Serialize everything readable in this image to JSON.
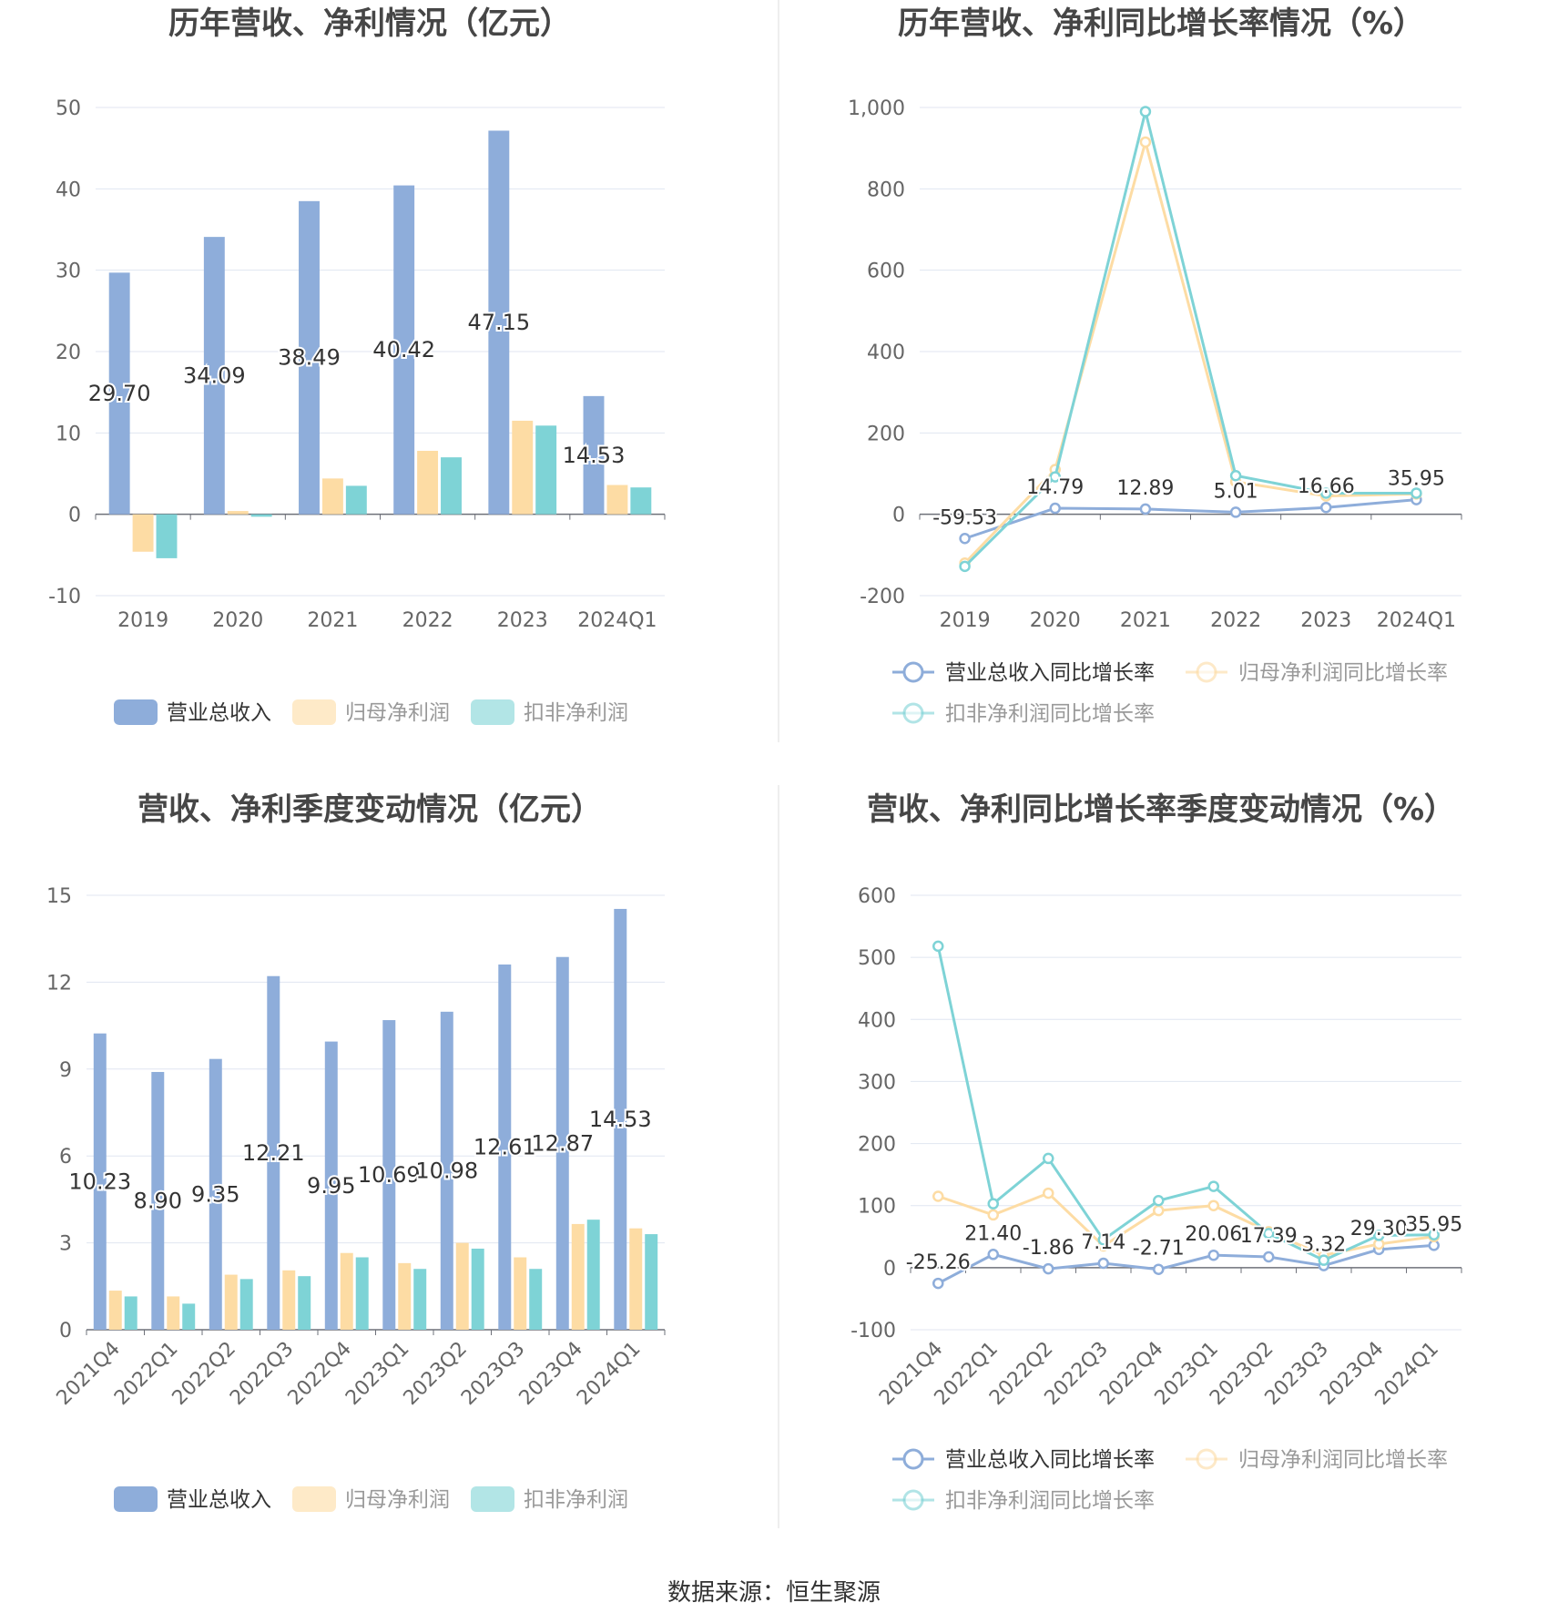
{
  "source_text": "数据来源：恒生聚源",
  "colors": {
    "revenue": "#8eadda",
    "net_profit": "#fddca4",
    "deducted_profit": "#7ed3d6",
    "axis_text": "#666666",
    "grid": "#e0e6f1",
    "title": "#464646"
  },
  "legend_bar": [
    "营业总收入",
    "归母净利润",
    "扣非净利润"
  ],
  "legend_line": [
    "营业总收入同比增长率",
    "归母净利润同比增长率",
    "扣非净利润同比增长率"
  ],
  "chart_data": [
    {
      "id": "annual_amount",
      "type": "bar",
      "title": "历年营收、净利情况（亿元）",
      "categories": [
        "2019",
        "2020",
        "2021",
        "2022",
        "2023",
        "2024Q1"
      ],
      "ylim": [
        -10,
        50
      ],
      "yticks": [
        -10,
        0,
        10,
        20,
        30,
        40,
        50
      ],
      "series": [
        {
          "name": "营业总收入",
          "values": [
            29.7,
            34.09,
            38.49,
            40.42,
            47.15,
            14.53
          ]
        },
        {
          "name": "归母净利润",
          "values": [
            -4.6,
            0.4,
            4.4,
            7.8,
            11.5,
            3.6
          ]
        },
        {
          "name": "扣非净利润",
          "values": [
            -5.4,
            -0.3,
            3.5,
            7.0,
            10.9,
            3.3
          ]
        }
      ],
      "data_labels": [
        "29.70",
        "34.09",
        "38.49",
        "40.42",
        "47.15",
        "14.53"
      ]
    },
    {
      "id": "annual_growth",
      "type": "line",
      "title": "历年营收、净利同比增长率情况（%）",
      "categories": [
        "2019",
        "2020",
        "2021",
        "2022",
        "2023",
        "2024Q1"
      ],
      "ylim": [
        -200,
        1000
      ],
      "yticks": [
        -200,
        0,
        200,
        400,
        600,
        800,
        1000
      ],
      "ytick_labels": [
        "-200",
        "0",
        "200",
        "400",
        "600",
        "800",
        "1,000"
      ],
      "series": [
        {
          "name": "营业总收入同比增长率",
          "values": [
            -59.53,
            14.79,
            12.89,
            5.01,
            16.66,
            35.95
          ]
        },
        {
          "name": "归母净利润同比增长率",
          "values": [
            -120,
            110,
            915,
            80,
            45,
            50
          ]
        },
        {
          "name": "扣非净利润同比增长率",
          "values": [
            -128,
            92,
            990,
            95,
            52,
            52
          ]
        }
      ],
      "data_labels": [
        "-59.53",
        "14.79",
        "12.89",
        "5.01",
        "16.66",
        "35.95"
      ]
    },
    {
      "id": "quarterly_amount",
      "type": "bar",
      "title": "营收、净利季度变动情况（亿元）",
      "categories": [
        "2021Q4",
        "2022Q1",
        "2022Q2",
        "2022Q3",
        "2022Q4",
        "2023Q1",
        "2023Q2",
        "2023Q3",
        "2023Q4",
        "2024Q1"
      ],
      "ylim": [
        0,
        15
      ],
      "yticks": [
        0,
        3,
        6,
        9,
        12,
        15
      ],
      "series": [
        {
          "name": "营业总收入",
          "values": [
            10.23,
            8.9,
            9.35,
            12.21,
            9.95,
            10.69,
            10.98,
            12.61,
            12.87,
            14.53
          ]
        },
        {
          "name": "归母净利润",
          "values": [
            1.35,
            1.15,
            1.9,
            2.05,
            2.65,
            2.3,
            3.0,
            2.5,
            3.65,
            3.5
          ]
        },
        {
          "name": "扣非净利润",
          "values": [
            1.15,
            0.9,
            1.75,
            1.85,
            2.5,
            2.1,
            2.8,
            2.1,
            3.8,
            3.3
          ]
        }
      ],
      "data_labels": [
        "10.23",
        "8.90",
        "9.35",
        "12.21",
        "9.95",
        "10.69",
        "10.98",
        "12.61",
        "12.87",
        "14.53"
      ]
    },
    {
      "id": "quarterly_growth",
      "type": "line",
      "title": "营收、净利同比增长率季度变动情况（%）",
      "categories": [
        "2021Q4",
        "2022Q1",
        "2022Q2",
        "2022Q3",
        "2022Q4",
        "2023Q1",
        "2023Q2",
        "2023Q3",
        "2023Q4",
        "2024Q1"
      ],
      "ylim": [
        -100,
        600
      ],
      "yticks": [
        -100,
        0,
        100,
        200,
        300,
        400,
        500,
        600
      ],
      "series": [
        {
          "name": "营业总收入同比增长率",
          "values": [
            -25.26,
            21.4,
            -1.86,
            7.14,
            -2.71,
            20.06,
            17.39,
            3.32,
            29.3,
            35.95
          ]
        },
        {
          "name": "归母净利润同比增长率",
          "values": [
            115,
            85,
            120,
            35,
            92,
            100,
            58,
            20,
            38,
            50
          ]
        },
        {
          "name": "扣非净利润同比增长率",
          "values": [
            518,
            103,
            176,
            45,
            108,
            131,
            55,
            12,
            52,
            53
          ]
        }
      ],
      "data_labels": [
        "-25.26",
        "21.40",
        "-1.86",
        "7.14",
        "-2.71",
        "20.06",
        "17.39",
        "3.32",
        "29.30",
        "35.95"
      ]
    }
  ]
}
